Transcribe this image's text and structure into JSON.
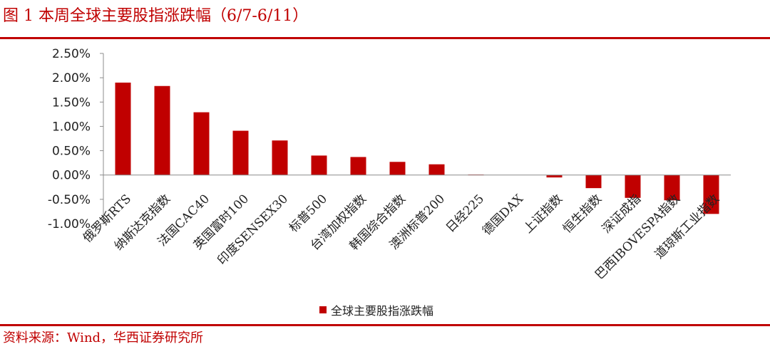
{
  "title": "图 1 本周全球主要股指涨跌幅（6/7-6/11）",
  "source": "资料来源：Wind，华西证券研究所",
  "colors": {
    "bar": "#c00000",
    "accent": "#c00000"
  },
  "chart_data": {
    "type": "bar",
    "categories": [
      "俄罗斯RTS",
      "纳斯达克指数",
      "法国CAC40",
      "英国富时100",
      "印度SENSEX30",
      "标普500",
      "台湾加权指数",
      "韩国综合指数",
      "澳洲标普200",
      "日经225",
      "德国DAX",
      "上证指数",
      "恒生指数",
      "深证成指",
      "巴西IBOVESPA指数",
      "道琼斯工业指数"
    ],
    "series": [
      {
        "name": "全球主要股指涨跌幅",
        "values": [
          1.9,
          1.83,
          1.29,
          0.91,
          0.71,
          0.4,
          0.37,
          0.27,
          0.22,
          0.01,
          0.0,
          -0.05,
          -0.27,
          -0.47,
          -0.52,
          -0.8
        ]
      }
    ],
    "yticks": [
      "2.50%",
      "2.00%",
      "1.50%",
      "1.00%",
      "0.50%",
      "0.00%",
      "-0.50%",
      "-1.00%"
    ],
    "ylim": [
      -1.0,
      2.5
    ],
    "grid": false,
    "legend_position": "bottom"
  }
}
